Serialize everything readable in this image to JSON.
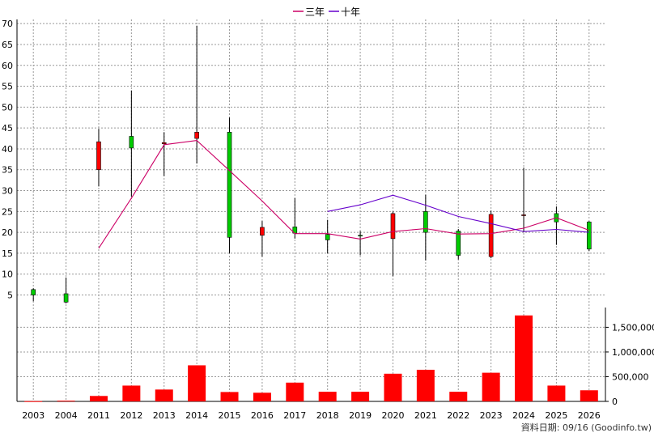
{
  "legend": [
    {
      "label": "三年",
      "color": "#cc0066"
    },
    {
      "label": "十年",
      "color": "#6600cc"
    }
  ],
  "source_text": "資料日期: 09/16  (Goodinfo.tw)",
  "colors": {
    "up": "#ff0000",
    "down": "#00cc00",
    "volume": "#ff0000",
    "grid": "#999999"
  },
  "chart_data": {
    "type": "candlestick+bar",
    "categories": [
      "2003",
      "2004",
      "2011",
      "2012",
      "2013",
      "2014",
      "2015",
      "2016",
      "2017",
      "2018",
      "2019",
      "2020",
      "2021",
      "2022",
      "2023",
      "2024",
      "2025",
      "2026"
    ],
    "price_axis": {
      "ylim": [
        2,
        71
      ],
      "ticks": [
        5,
        10,
        15,
        20,
        25,
        30,
        35,
        40,
        45,
        50,
        55,
        60,
        65,
        70
      ]
    },
    "volume_axis": {
      "ylim": [
        0,
        1900000
      ],
      "ticks": [
        0,
        500000,
        1000000,
        1500000
      ],
      "tick_labels": [
        "0",
        "500,000",
        "1,000,000",
        "1,500,000"
      ]
    },
    "ohlc": [
      {
        "open": 5.0,
        "high": 6.6,
        "low": 3.5,
        "close": 6.3
      },
      {
        "open": 3.3,
        "high": 9.2,
        "low": 3.0,
        "close": 5.3
      },
      {
        "open": 41.7,
        "high": 44.8,
        "low": 31.0,
        "close": 35.0
      },
      {
        "open": 40.2,
        "high": 54.0,
        "low": 28.5,
        "close": 43.0
      },
      {
        "open": 41.5,
        "high": 44.0,
        "low": 33.5,
        "close": 41.2
      },
      {
        "open": 44.0,
        "high": 69.5,
        "low": 36.5,
        "close": 42.5
      },
      {
        "open": 18.8,
        "high": 47.5,
        "low": 15.0,
        "close": 44.0
      },
      {
        "open": 21.2,
        "high": 22.7,
        "low": 14.2,
        "close": 19.3
      },
      {
        "open": 19.8,
        "high": 28.2,
        "low": 18.5,
        "close": 21.3
      },
      {
        "open": 18.2,
        "high": 23.0,
        "low": 15.0,
        "close": 19.5
      },
      {
        "open": 19.3,
        "high": 20.3,
        "low": 14.5,
        "close": 19.3
      },
      {
        "open": 24.5,
        "high": 25.0,
        "low": 9.5,
        "close": 18.5
      },
      {
        "open": 20.0,
        "high": 29.0,
        "low": 13.3,
        "close": 25.0
      },
      {
        "open": 14.5,
        "high": 20.8,
        "low": 13.5,
        "close": 20.3
      },
      {
        "open": 24.3,
        "high": 25.2,
        "low": 13.8,
        "close": 14.2
      },
      {
        "open": 24.2,
        "high": 35.5,
        "low": 20.0,
        "close": 24.0
      },
      {
        "open": 22.5,
        "high": 26.2,
        "low": 17.0,
        "close": 24.5
      },
      {
        "open": 16.0,
        "high": 22.7,
        "low": 15.5,
        "close": 22.5
      }
    ],
    "series": [
      {
        "name": "三年",
        "values": [
          null,
          null,
          16.2,
          28.2,
          41.0,
          42.0,
          34.8,
          27.5,
          19.7,
          19.7,
          18.4,
          20.2,
          20.9,
          19.6,
          19.7,
          21.0,
          23.5,
          20.5
        ]
      },
      {
        "name": "十年",
        "values": [
          null,
          null,
          null,
          null,
          null,
          null,
          null,
          null,
          null,
          25.0,
          26.6,
          28.9,
          26.5,
          23.8,
          22.1,
          20.2,
          20.7,
          20.0
        ]
      }
    ],
    "volume": [
      5000,
      15000,
      110000,
      320000,
      240000,
      730000,
      190000,
      175000,
      380000,
      195000,
      195000,
      560000,
      640000,
      195000,
      580000,
      1740000,
      320000,
      225000
    ]
  }
}
